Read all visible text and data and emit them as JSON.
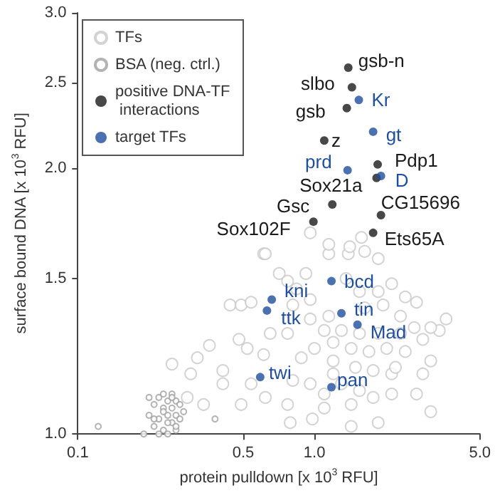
{
  "chart_data": {
    "type": "scatter",
    "xlabel": "protein pulldown [x 10$^{3}$ RFU]",
    "ylabel": "surface bound DNA [x 10$^{3}$ RFU]",
    "log": "xy",
    "grid": false,
    "legend": "top left",
    "marker": "circle",
    "xlim": [
      0.1,
      5.0
    ],
    "ylim": [
      1.0,
      3.0
    ],
    "xticks": [
      {
        "value": 0.1,
        "label": "0.1"
      },
      {
        "value": 0.5,
        "label": "0.5"
      },
      {
        "value": 1.0,
        "label": "1.0"
      },
      {
        "value": 5.0,
        "label": "5.0"
      }
    ],
    "yticks": [
      {
        "value": 1.0,
        "label": "1.0"
      },
      {
        "value": 1.5,
        "label": "1.5"
      },
      {
        "value": 2.0,
        "label": "2.0"
      },
      {
        "value": 2.5,
        "label": "2.5"
      },
      {
        "value": 3.0,
        "label": "3.0"
      }
    ],
    "series": [
      {
        "name": "TFs",
        "color": "#c8c8c8",
        "x": [
          0.61,
          0.44,
          0.49,
          0.54,
          0.71,
          0.77,
          0.92,
          1.15,
          1.39,
          1.63,
          1.86,
          2.12,
          2.42,
          2.7,
          3.6,
          3.37,
          3.1,
          2.87,
          2.42,
          3.1,
          2.7,
          3.1,
          1.86,
          1.43,
          0.98,
          0.79,
          0.62,
          0.54,
          0.49,
          0.41,
          0.34,
          0.29,
          0.3,
          0.25,
          0.36,
          0.32,
          0.41,
          0.48,
          0.52,
          0.61,
          0.65,
          0.77,
          0.88,
          0.81,
          0.96,
          1.1,
          1.3,
          1.55,
          1.77,
          2.12,
          2.12,
          1.77,
          1.49,
          1.2,
          1.0,
          1.2,
          1.43,
          1.7,
          2.02,
          2.31,
          1.86,
          1.55,
          1.3,
          1.1,
          0.96,
          1.15,
          1.63,
          1.95,
          1.86,
          1.55,
          0.96,
          0.81,
          0.84,
          1.36,
          2.31,
          2.64,
          2.2,
          1.2,
          1.43,
          1.1,
          0.77,
          2.87,
          0.96,
          1.15,
          1.41,
          1.58,
          0.62
        ],
        "values": [
          1.6,
          1.4,
          1.4,
          1.41,
          1.52,
          1.49,
          1.52,
          1.6,
          1.6,
          1.61,
          1.58,
          1.48,
          1.43,
          1.41,
          1.35,
          1.31,
          1.32,
          1.28,
          1.24,
          1.21,
          1.11,
          1.06,
          1.03,
          1.02,
          1.04,
          1.03,
          1.1,
          1.14,
          1.08,
          1.14,
          1.08,
          1.1,
          1.17,
          1.2,
          1.26,
          1.22,
          1.18,
          1.28,
          1.25,
          1.23,
          1.3,
          1.3,
          1.22,
          1.15,
          1.14,
          1.11,
          1.14,
          1.12,
          1.1,
          1.11,
          1.17,
          1.18,
          1.19,
          1.21,
          1.25,
          1.27,
          1.25,
          1.24,
          1.25,
          1.3,
          1.3,
          1.3,
          1.31,
          1.31,
          1.35,
          1.36,
          1.39,
          1.4,
          1.45,
          1.45,
          1.42,
          1.4,
          1.46,
          1.5,
          1.36,
          1.32,
          1.19,
          1.17,
          1.08,
          1.07,
          1.08,
          1.17,
          1.69,
          1.64,
          1.63,
          1.67,
          1.6
        ]
      },
      {
        "name": "BSA (neg. ctrl.)",
        "color": "#a0a0a0",
        "x": [
          0.122,
          0.38,
          0.19,
          0.2,
          0.21,
          0.21,
          0.22,
          0.22,
          0.23,
          0.23,
          0.23,
          0.24,
          0.24,
          0.24,
          0.25,
          0.25,
          0.25,
          0.26,
          0.26,
          0.26,
          0.27,
          0.27,
          0.28,
          0.2,
          0.22,
          0.24,
          0.25,
          0.23,
          0.21,
          0.26
        ],
        "values": [
          1.02,
          1.04,
          1.0,
          1.05,
          1.08,
          1.02,
          1.1,
          1.04,
          1.07,
          1.01,
          1.11,
          1.05,
          1.09,
          1.0,
          1.03,
          1.07,
          1.11,
          1.05,
          1.09,
          1.01,
          1.04,
          1.08,
          1.06,
          1.1,
          1.0,
          1.03,
          1.1,
          1.06,
          1.04,
          1.02
        ]
      },
      {
        "name": "positive DNA-TF interactions",
        "color": "#1a1a1a",
        "x": [
          1.39,
          1.44,
          1.37,
          1.1,
          1.85,
          1.83,
          1.19,
          1.91,
          0.99,
          1.77
        ],
        "values": [
          2.6,
          2.47,
          2.34,
          2.15,
          2.02,
          1.95,
          1.82,
          1.77,
          1.74,
          1.69
        ]
      },
      {
        "name": "target TFs",
        "color": "#1f4e9c",
        "x": [
          1.54,
          1.77,
          1.38,
          1.91,
          1.18,
          0.66,
          0.63,
          1.3,
          1.52,
          0.59,
          1.18
        ],
        "values": [
          2.39,
          2.2,
          1.99,
          1.96,
          1.49,
          1.42,
          1.38,
          1.37,
          1.33,
          1.16,
          1.13
        ]
      }
    ],
    "annotations": [
      {
        "text": "gsb-n",
        "x": 1.39,
        "y": 2.6
      },
      {
        "text": "slbo",
        "x": 1.44,
        "y": 2.47
      },
      {
        "text": "Kr",
        "x": 1.54,
        "y": 2.39
      },
      {
        "text": "gsb",
        "x": 1.37,
        "y": 2.34
      },
      {
        "text": "gt",
        "x": 1.77,
        "y": 2.2
      },
      {
        "text": "z",
        "x": 1.1,
        "y": 2.15
      },
      {
        "text": "Pdp1",
        "x": 1.85,
        "y": 2.02
      },
      {
        "text": "prd",
        "x": 1.38,
        "y": 1.99
      },
      {
        "text": "D",
        "x": 1.91,
        "y": 1.96
      },
      {
        "text": "Sox21a",
        "x": 1.83,
        "y": 1.95
      },
      {
        "text": "Gsc",
        "x": 1.19,
        "y": 1.82
      },
      {
        "text": "CG15696",
        "x": 1.91,
        "y": 1.77
      },
      {
        "text": "Sox102F",
        "x": 0.99,
        "y": 1.74
      },
      {
        "text": "Ets65A",
        "x": 1.77,
        "y": 1.69
      },
      {
        "text": "bcd",
        "x": 1.18,
        "y": 1.49
      },
      {
        "text": "kni",
        "x": 0.66,
        "y": 1.42
      },
      {
        "text": "ttk",
        "x": 0.63,
        "y": 1.38
      },
      {
        "text": "tin",
        "x": 1.3,
        "y": 1.37
      },
      {
        "text": "Mad",
        "x": 1.52,
        "y": 1.33
      },
      {
        "text": "twi",
        "x": 0.59,
        "y": 1.16
      },
      {
        "text": "pan",
        "x": 1.18,
        "y": 1.13
      }
    ]
  }
}
